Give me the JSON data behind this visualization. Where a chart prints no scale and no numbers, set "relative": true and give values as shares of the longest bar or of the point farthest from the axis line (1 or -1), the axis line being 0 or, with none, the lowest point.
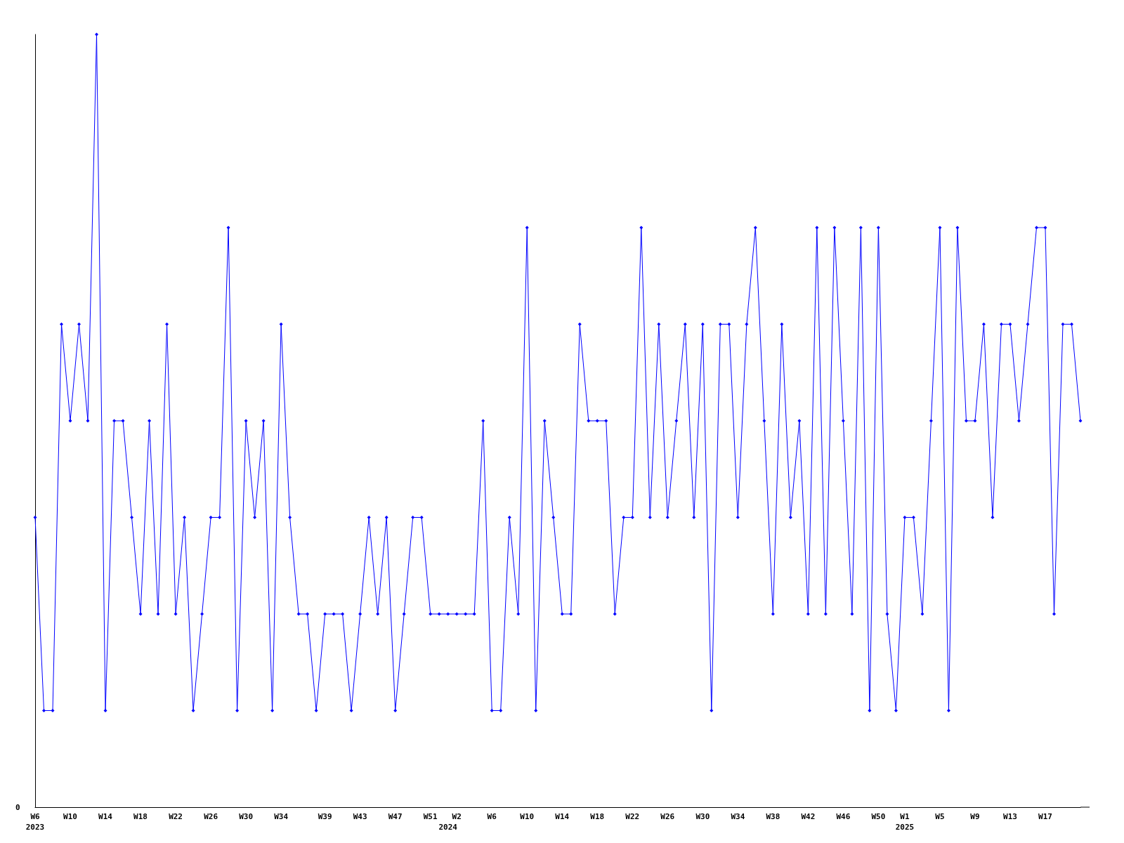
{
  "chart_data": {
    "type": "line",
    "relative": true,
    "color": "#0000ff",
    "marker": "diamond",
    "grid": false,
    "annotations": [
      "0"
    ],
    "categories": [
      "W6\n2023",
      null,
      null,
      null,
      "W10",
      null,
      null,
      null,
      "W14",
      null,
      null,
      null,
      "W18",
      null,
      null,
      null,
      "W22",
      null,
      null,
      null,
      "W26",
      null,
      null,
      null,
      "W30",
      null,
      null,
      null,
      "W34",
      null,
      null,
      null,
      null,
      "W39",
      null,
      null,
      null,
      "W43",
      null,
      null,
      null,
      "W47",
      null,
      null,
      null,
      "W51",
      null,
      "\n2024",
      "W2",
      null,
      null,
      null,
      "W6",
      null,
      null,
      null,
      "W10",
      null,
      null,
      null,
      "W14",
      null,
      null,
      null,
      "W18",
      null,
      null,
      null,
      "W22",
      null,
      null,
      null,
      "W26",
      null,
      null,
      null,
      "W30",
      null,
      null,
      null,
      "W34",
      null,
      null,
      null,
      "W38",
      null,
      null,
      null,
      "W42",
      null,
      null,
      null,
      "W46",
      null,
      null,
      null,
      "W50",
      null,
      null,
      "W1\n2025",
      null,
      null,
      null,
      "W5",
      null,
      null,
      null,
      "W9",
      null,
      null,
      null,
      "W13",
      null,
      null,
      null,
      "W17",
      null,
      null,
      null,
      null
    ],
    "values": [
      0.375,
      0.125,
      0.125,
      0.625,
      0.5,
      0.625,
      0.5,
      1,
      0.125,
      0.5,
      0.5,
      0.375,
      0.25,
      0.5,
      0.25,
      0.625,
      0.25,
      0.375,
      0.125,
      0.25,
      0.375,
      0.375,
      0.75,
      0.125,
      0.5,
      0.375,
      0.5,
      0.125,
      0.625,
      0.375,
      0.25,
      0.25,
      0.125,
      0.25,
      0.25,
      0.25,
      0.125,
      0.25,
      0.375,
      0.25,
      0.375,
      0.125,
      0.25,
      0.375,
      0.375,
      0.25,
      0.25,
      0.25,
      0.25,
      0.25,
      0.25,
      0.5,
      0.125,
      0.125,
      0.375,
      0.25,
      0.75,
      0.125,
      0.5,
      0.375,
      0.25,
      0.25,
      0.625,
      0.5,
      0.5,
      0.5,
      0.25,
      0.375,
      0.375,
      0.75,
      0.375,
      0.625,
      0.375,
      0.5,
      0.625,
      0.375,
      0.625,
      0.125,
      0.625,
      0.625,
      0.375,
      0.625,
      0.75,
      0.5,
      0.25,
      0.625,
      0.375,
      0.5,
      0.25,
      0.75,
      0.25,
      0.75,
      0.5,
      0.25,
      0.75,
      0.125,
      0.75,
      0.25,
      0.125,
      0.375,
      0.375,
      0.25,
      0.5,
      0.75,
      0.125,
      0.75,
      0.5,
      0.5,
      0.625,
      0.375,
      0.625,
      0.625,
      0.5,
      0.625,
      0.75,
      0.75,
      0.25,
      0.625,
      0.625,
      0.5
    ]
  }
}
